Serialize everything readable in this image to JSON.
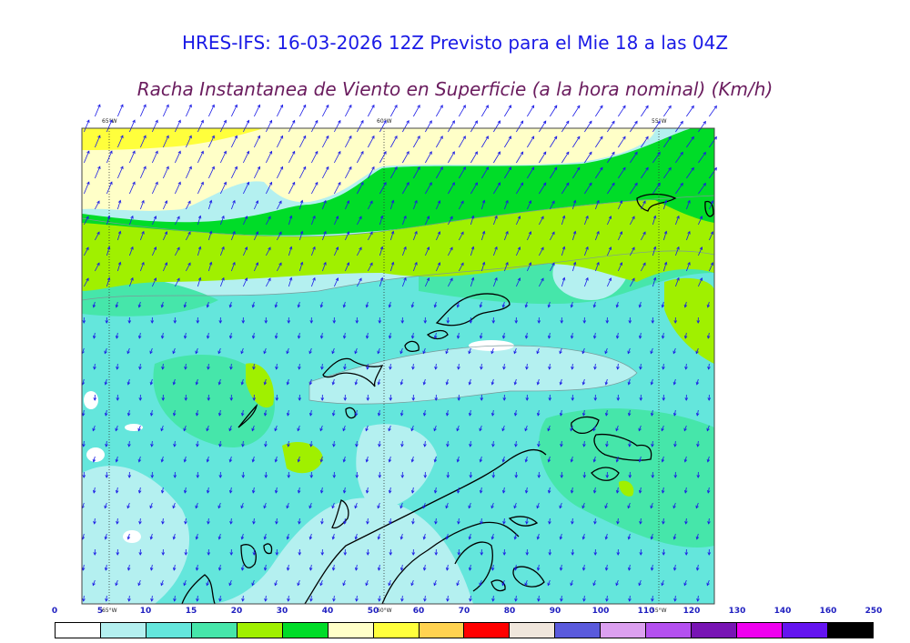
{
  "title_line1": "HRES-IFS: 16-03-2026 12Z Previsto para el Mie 18 a las 04Z",
  "title_line2": "Racha Instantanea de Viento en Superficie (a la hora nominal) (Km/h)",
  "lon_labels": [
    "65°W",
    "60°W",
    "55°W"
  ],
  "lon_labels_bottom": [
    "65°W",
    "60°W",
    "55°W"
  ],
  "legend": {
    "values": [
      "0",
      "5",
      "10",
      "15",
      "20",
      "30",
      "40",
      "50",
      "60",
      "70",
      "80",
      "90",
      "100",
      "110",
      "120",
      "130",
      "140",
      "160",
      "250"
    ],
    "colors": [
      "#ffffff",
      "#b4f0f0",
      "#64e6dc",
      "#46e6aa",
      "#a0f000",
      "#00dc28",
      "#ffffc8",
      "#ffff3c",
      "#ffd250",
      "#ff0000",
      "#f0e6dc",
      "#5a5adc",
      "#dca0f0",
      "#b450f0",
      "#7814b4",
      "#f000f0",
      "#6414f0",
      "#000000"
    ]
  },
  "palette": {
    "calm": "#ffffff",
    "light_cyan": "#b4f0f0",
    "cyan": "#64e6dc",
    "teal": "#46e6aa",
    "lime": "#a0f000",
    "green": "#00dc28",
    "pale_yellow": "#ffffc8",
    "yellow": "#ffff3c",
    "arrow": "#1a1ae6",
    "coast": "#000000"
  }
}
